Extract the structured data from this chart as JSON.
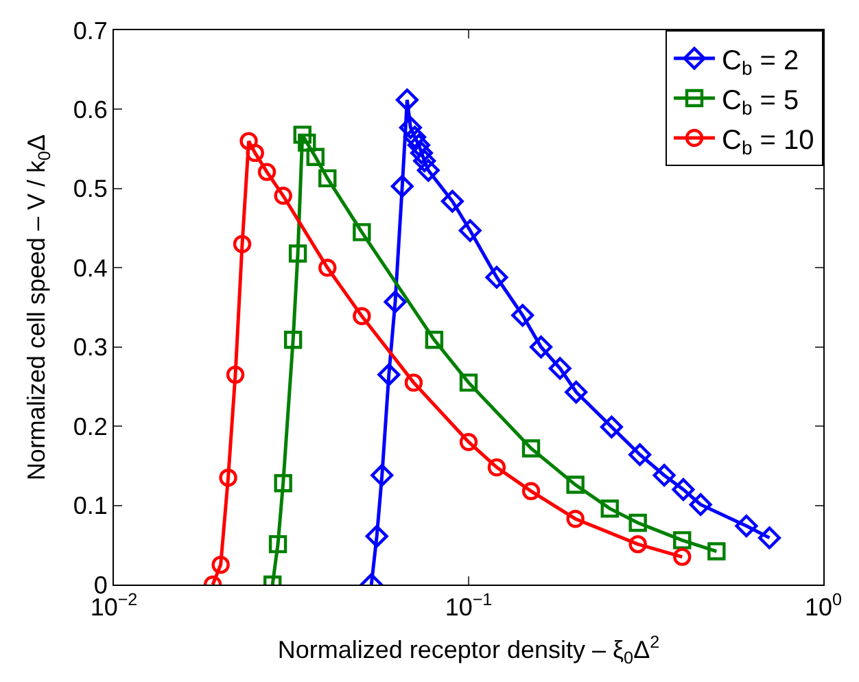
{
  "chart_data": {
    "type": "line",
    "xlabel": "Normalized receptor density – ξ$_{0}$Δ$^{2}$",
    "ylabel": "Normalized cell speed – V / k$_{0}$Δ",
    "log": "x",
    "xlim": [
      0.01,
      1
    ],
    "xticks": [
      {
        "value": 0.01,
        "label": "10$^{−2}$"
      },
      {
        "value": 0.1,
        "label": "10$^{−1}$"
      },
      {
        "value": 1,
        "label": "10$^{0}$"
      }
    ],
    "ylim": [
      0,
      0.7
    ],
    "yticks": [
      0,
      0.1,
      0.2,
      0.3,
      0.4,
      0.5,
      0.6,
      0.7
    ],
    "legend": "top right",
    "line_style": "solid",
    "series": [
      {
        "name": "C$_{b}$ = 2",
        "color": "#0000ff",
        "marker": "diamond",
        "x": [
          0.0532,
          0.0551,
          0.057,
          0.0596,
          0.0621,
          0.065,
          0.0671,
          0.0686,
          0.0705,
          0.0724,
          0.0737,
          0.0751,
          0.077,
          0.09,
          0.101,
          0.12,
          0.142,
          0.16,
          0.181,
          0.201,
          0.253,
          0.304,
          0.356,
          0.403,
          0.451,
          0.607,
          0.705
        ],
        "values": [
          0,
          0.061,
          0.138,
          0.265,
          0.357,
          0.503,
          0.612,
          0.577,
          0.565,
          0.555,
          0.545,
          0.535,
          0.523,
          0.484,
          0.447,
          0.388,
          0.34,
          0.3,
          0.273,
          0.243,
          0.199,
          0.164,
          0.138,
          0.12,
          0.101,
          0.074,
          0.059
        ]
      },
      {
        "name": "C$_{b}$ = 5",
        "color": "#008000",
        "marker": "square",
        "x": [
          0.028,
          0.029,
          0.03,
          0.032,
          0.033,
          0.034,
          0.035,
          0.037,
          0.04,
          0.05,
          0.08,
          0.1,
          0.15,
          0.2,
          0.25,
          0.3,
          0.4,
          0.5
        ],
        "values": [
          0,
          0.051,
          0.128,
          0.309,
          0.418,
          0.568,
          0.558,
          0.54,
          0.513,
          0.445,
          0.309,
          0.255,
          0.172,
          0.126,
          0.096,
          0.078,
          0.056,
          0.042
        ]
      },
      {
        "name": "C$_{b}$ = 10",
        "color": "#ff0000",
        "marker": "circle",
        "x": [
          0.019,
          0.02,
          0.021,
          0.022,
          0.023,
          0.024,
          0.025,
          0.027,
          0.03,
          0.04,
          0.05,
          0.07,
          0.1,
          0.12,
          0.15,
          0.2,
          0.3,
          0.4
        ],
        "values": [
          0,
          0.025,
          0.135,
          0.265,
          0.43,
          0.56,
          0.545,
          0.521,
          0.491,
          0.4,
          0.339,
          0.255,
          0.18,
          0.148,
          0.118,
          0.083,
          0.051,
          0.035
        ]
      }
    ]
  }
}
